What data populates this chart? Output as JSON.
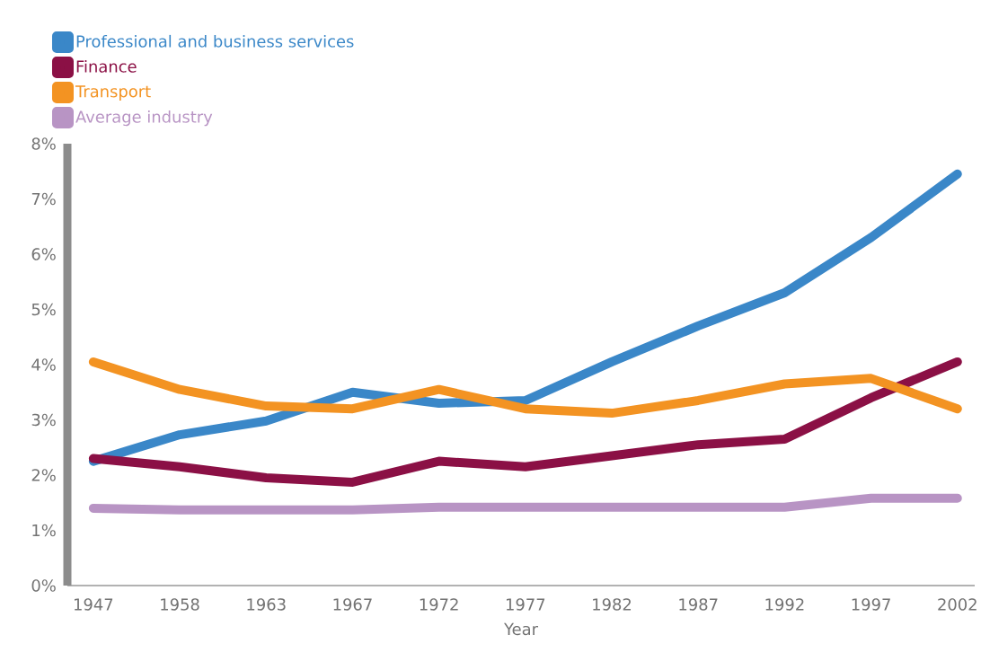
{
  "chart_data": {
    "type": "line",
    "xlabel": "Year",
    "categories": [
      "1947",
      "1958",
      "1963",
      "1967",
      "1972",
      "1977",
      "1982",
      "1987",
      "1992",
      "1997",
      "2002"
    ],
    "series": [
      {
        "name": "Professional and business services",
        "color": "#3a87c8",
        "values": [
          2.25,
          2.73,
          2.98,
          3.5,
          3.3,
          3.35,
          4.05,
          4.7,
          5.3,
          6.3,
          7.45
        ]
      },
      {
        "name": "Finance",
        "color": "#8b1045",
        "values": [
          2.3,
          2.15,
          1.95,
          1.87,
          2.25,
          2.15,
          2.35,
          2.55,
          2.65,
          3.4,
          4.05
        ]
      },
      {
        "name": "Transport",
        "color": "#f39322",
        "values": [
          4.05,
          3.55,
          3.25,
          3.2,
          3.55,
          3.2,
          3.12,
          3.35,
          3.65,
          3.75,
          3.2
        ]
      },
      {
        "name": "Average industry",
        "color": "#b894c4",
        "values": [
          1.4,
          1.37,
          1.37,
          1.37,
          1.42,
          1.42,
          1.42,
          1.42,
          1.42,
          1.58,
          1.58
        ]
      }
    ],
    "ylim": [
      0,
      8
    ],
    "yticks": [
      {
        "value": 0,
        "label": "0%"
      },
      {
        "value": 1,
        "label": "1%"
      },
      {
        "value": 2,
        "label": "2%"
      },
      {
        "value": 3,
        "label": "3%"
      },
      {
        "value": 4,
        "label": "4%"
      },
      {
        "value": 5,
        "label": "5%"
      },
      {
        "value": 6,
        "label": "6%"
      },
      {
        "value": 7,
        "label": "7%"
      },
      {
        "value": 8,
        "label": "8%"
      }
    ],
    "grid": false,
    "legend": "top left",
    "marker": "none",
    "line_style": "solid"
  }
}
